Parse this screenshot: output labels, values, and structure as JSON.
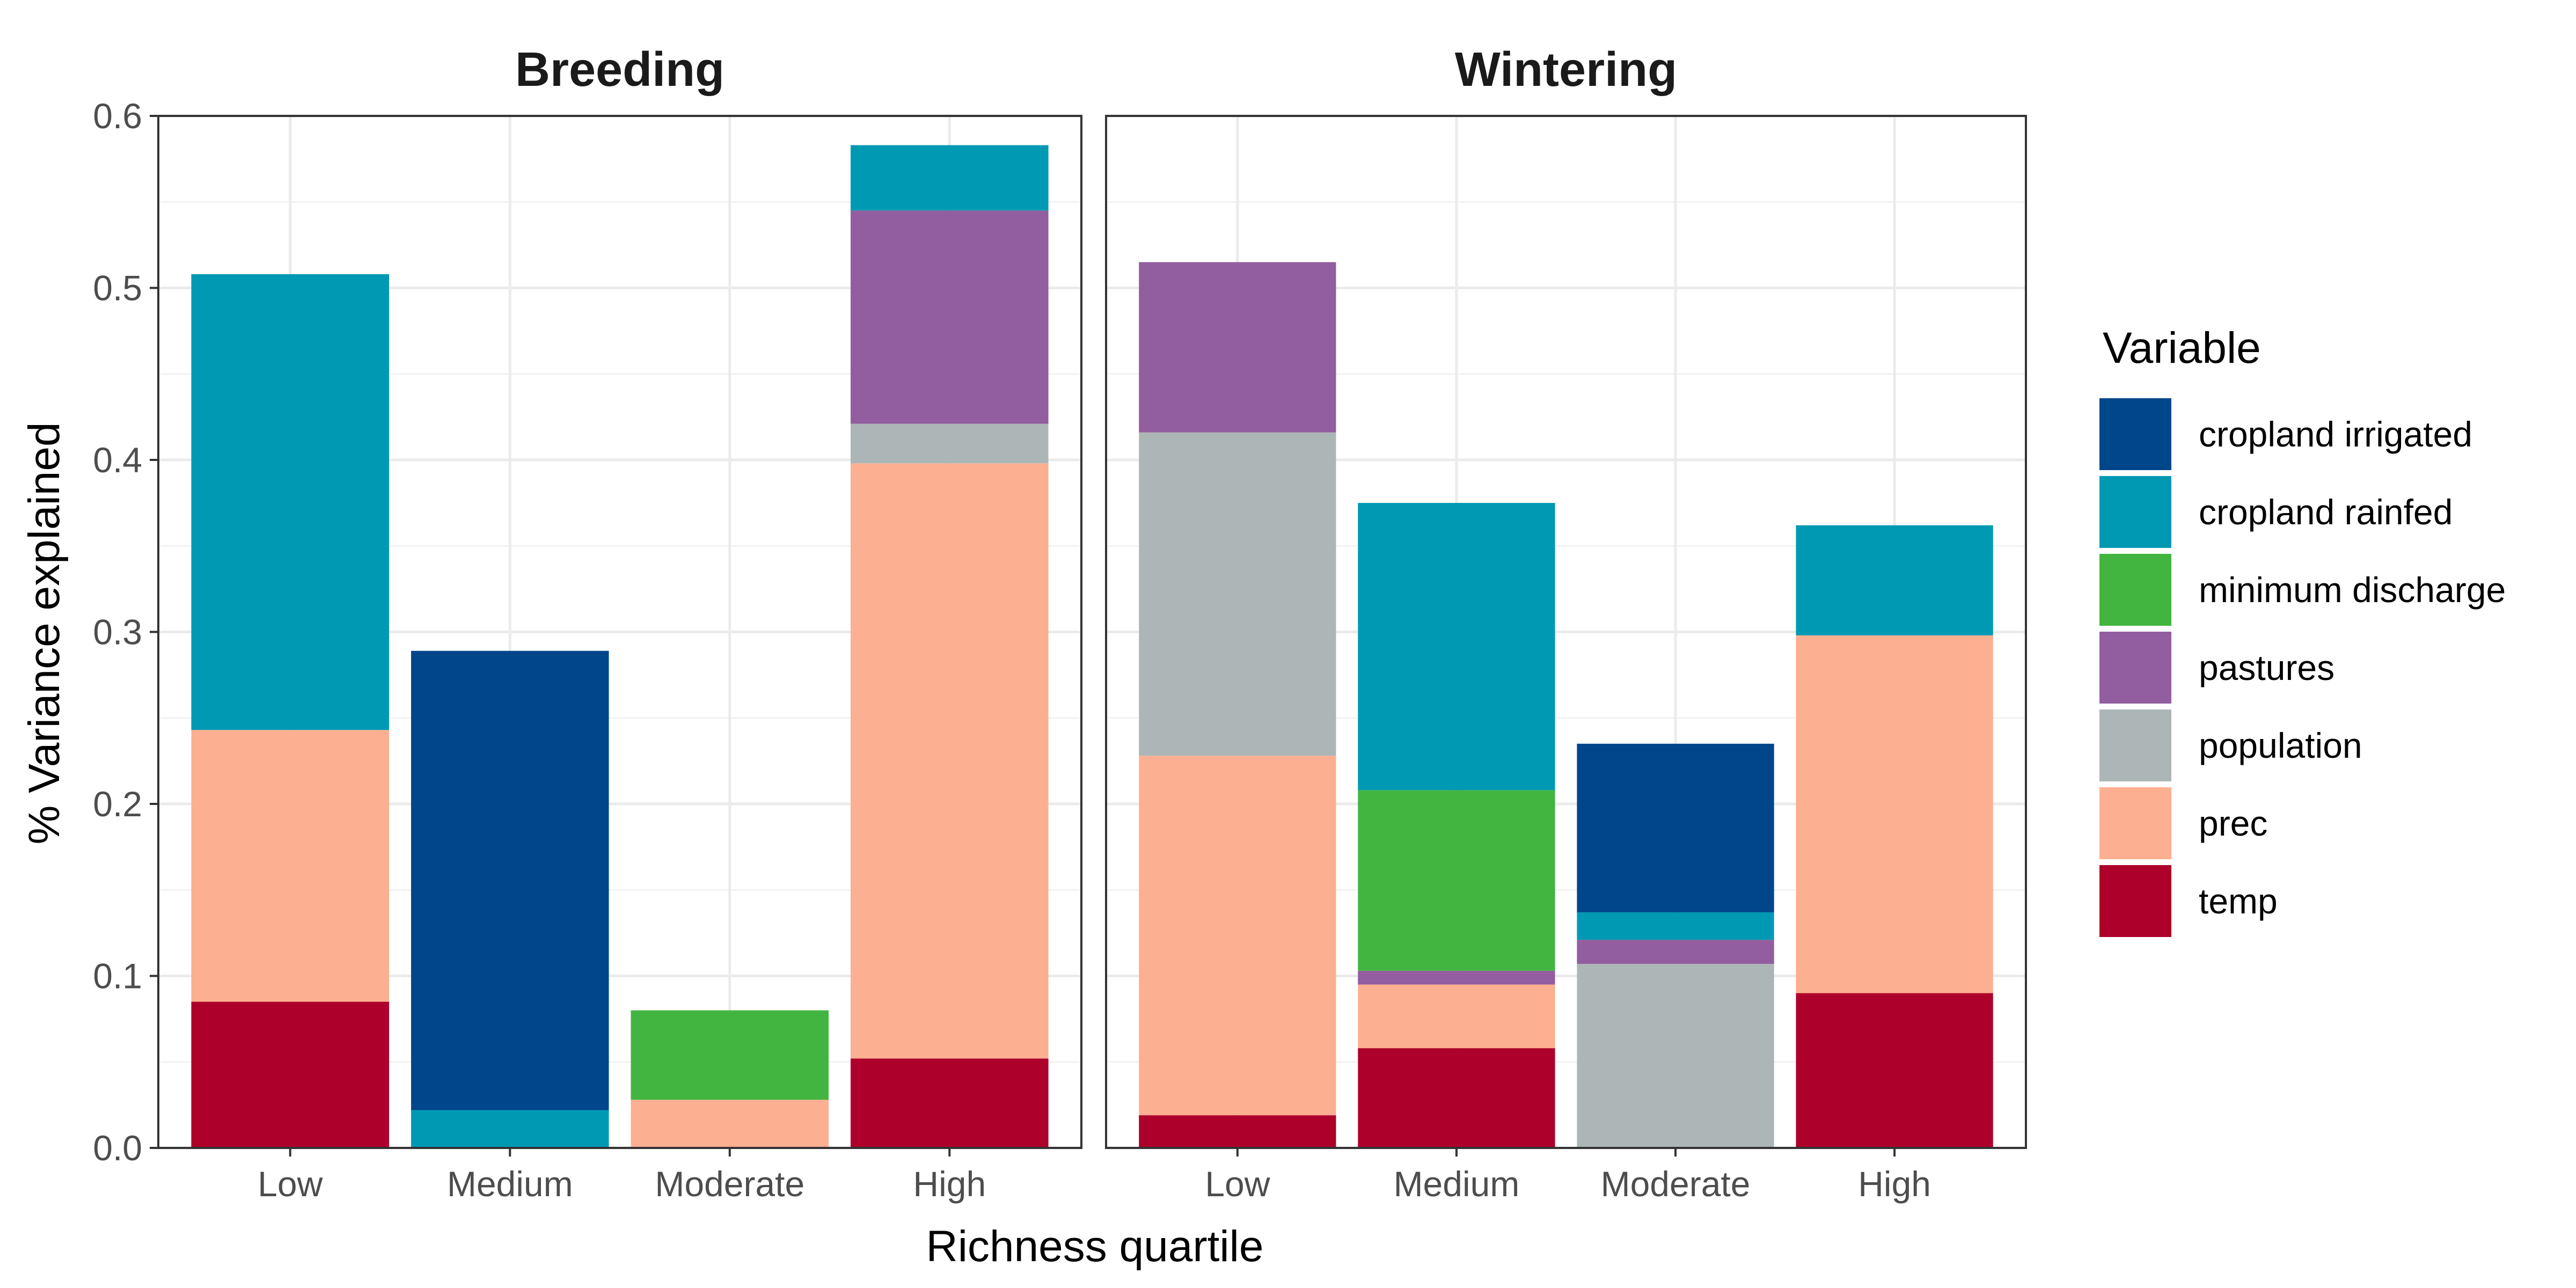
{
  "chart_data": {
    "type": "bar",
    "stacked": true,
    "facets": [
      "Breeding",
      "Wintering"
    ],
    "categories": [
      "Low",
      "Medium",
      "Moderate",
      "High"
    ],
    "xlabel": "Richness quartile",
    "ylabel": "% Variance explained",
    "ylim": [
      0,
      0.6
    ],
    "yticks": [
      "0.0",
      "0.1",
      "0.2",
      "0.3",
      "0.4",
      "0.5",
      "0.6"
    ],
    "grid": true,
    "legend": {
      "title": "Variable",
      "position": "right",
      "entries": [
        {
          "name": "cropland irrigated",
          "color": "#00468B"
        },
        {
          "name": "cropland rainfed",
          "color": "#0099B4"
        },
        {
          "name": "minimum discharge",
          "color": "#42B540"
        },
        {
          "name": "pastures",
          "color": "#925E9F"
        },
        {
          "name": "population",
          "color": "#ADB6B6"
        },
        {
          "name": "prec",
          "color": "#FDAF91"
        },
        {
          "name": "temp",
          "color": "#AD002A"
        }
      ]
    },
    "stack_order_bottom_to_top": [
      "temp",
      "prec",
      "population",
      "pastures",
      "minimum discharge",
      "cropland rainfed",
      "cropland irrigated"
    ],
    "panels": [
      {
        "name": "Breeding",
        "series": [
          {
            "name": "temp",
            "values": [
              0.085,
              0,
              0,
              0.052
            ]
          },
          {
            "name": "prec",
            "values": [
              0.158,
              0,
              0.028,
              0.346
            ]
          },
          {
            "name": "population",
            "values": [
              0,
              0,
              0,
              0.023
            ]
          },
          {
            "name": "pastures",
            "values": [
              0,
              0,
              0,
              0.124
            ]
          },
          {
            "name": "minimum discharge",
            "values": [
              0,
              0,
              0.052,
              0
            ]
          },
          {
            "name": "cropland rainfed",
            "values": [
              0.265,
              0.022,
              0,
              0.038
            ]
          },
          {
            "name": "cropland irrigated",
            "values": [
              0,
              0.267,
              0,
              0
            ]
          }
        ]
      },
      {
        "name": "Wintering",
        "series": [
          {
            "name": "temp",
            "values": [
              0.019,
              0.058,
              0,
              0.09
            ]
          },
          {
            "name": "prec",
            "values": [
              0.209,
              0.037,
              0,
              0.208
            ]
          },
          {
            "name": "population",
            "values": [
              0.188,
              0,
              0.107,
              0
            ]
          },
          {
            "name": "pastures",
            "values": [
              0.099,
              0.008,
              0.014,
              0
            ]
          },
          {
            "name": "minimum discharge",
            "values": [
              0,
              0.105,
              0,
              0
            ]
          },
          {
            "name": "cropland rainfed",
            "values": [
              0,
              0.167,
              0.016,
              0.064
            ]
          },
          {
            "name": "cropland irrigated",
            "values": [
              0,
              0,
              0.098,
              0
            ]
          }
        ]
      }
    ]
  }
}
